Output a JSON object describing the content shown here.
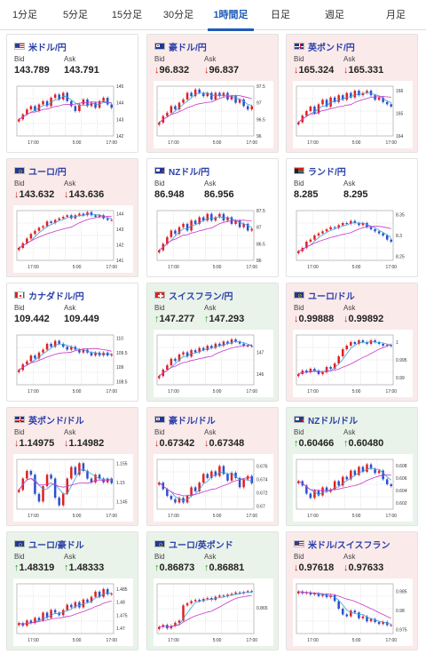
{
  "tabs": [
    {
      "label": "1分足",
      "active": false
    },
    {
      "label": "5分足",
      "active": false
    },
    {
      "label": "15分足",
      "active": false
    },
    {
      "label": "30分足",
      "active": false
    },
    {
      "label": "1時間足",
      "active": true
    },
    {
      "label": "日足",
      "active": false
    },
    {
      "label": "週足",
      "active": false
    },
    {
      "label": "月足",
      "active": false
    }
  ],
  "labels": {
    "bid": "Bid",
    "ask": "Ask"
  },
  "colors": {
    "up_bg": "#e9f3e9",
    "down_bg": "#fbeaea",
    "up_arrow": "#2a9a2a",
    "down_arrow": "#d02020",
    "candle_up": "#e02020",
    "candle_down": "#2a4fd0",
    "ma_short": "#37a0e0",
    "ma_long": "#c838c8"
  },
  "pairs": [
    {
      "name": "米ドル/円",
      "flag": "us",
      "dir": "flat",
      "bid": "143.789",
      "ask": "143.791",
      "chart_data": {
        "type": "candlestick",
        "x_ticks": [
          "17:00",
          "5:00",
          "17:00"
        ],
        "y_ticks": [
          "145",
          "144",
          "143",
          "142"
        ],
        "ylim": [
          142,
          145
        ],
        "close": [
          143.0,
          143.3,
          143.6,
          143.8,
          143.5,
          143.9,
          144.1,
          143.8,
          144.3,
          144.5,
          144.2,
          144.6,
          144.1,
          143.8,
          143.5,
          143.9,
          144.2,
          143.8,
          144.0,
          143.7,
          144.1,
          144.3,
          143.9,
          143.7
        ]
      }
    },
    {
      "name": "豪ドル/円",
      "flag": "au",
      "dir": "down",
      "bid": "96.832",
      "ask": "96.837",
      "chart_data": {
        "type": "candlestick",
        "x_ticks": [
          "17:00",
          "5:00",
          "17:00"
        ],
        "y_ticks": [
          "97.5",
          "97",
          "96.5",
          "96"
        ],
        "ylim": [
          96,
          97.5
        ],
        "close": [
          96.4,
          96.6,
          96.7,
          96.9,
          96.8,
          97.0,
          97.1,
          97.3,
          97.2,
          97.4,
          97.3,
          97.2,
          97.3,
          97.1,
          97.3,
          97.2,
          97.3,
          97.1,
          97.2,
          97.0,
          97.1,
          96.9,
          96.8,
          96.9
        ]
      }
    },
    {
      "name": "英ポンド/円",
      "flag": "gb",
      "dir": "down",
      "bid": "165.324",
      "ask": "165.331",
      "chart_data": {
        "type": "candlestick",
        "x_ticks": [
          "17:00",
          "5:00",
          "17:00"
        ],
        "y_ticks": [
          "166",
          "165",
          "164"
        ],
        "ylim": [
          164,
          166.2
        ],
        "close": [
          164.6,
          164.9,
          165.1,
          165.3,
          165.0,
          165.4,
          165.6,
          165.3,
          165.7,
          165.5,
          165.8,
          165.6,
          165.9,
          165.7,
          166.0,
          165.8,
          165.9,
          166.0,
          165.8,
          165.6,
          165.7,
          165.5,
          165.4,
          165.3
        ]
      }
    },
    {
      "name": "ユーロ/円",
      "flag": "eu",
      "dir": "down",
      "bid": "143.632",
      "ask": "143.636",
      "chart_data": {
        "type": "candlestick",
        "x_ticks": [
          "17:00",
          "5:00",
          "17:00"
        ],
        "y_ticks": [
          "144",
          "143",
          "142",
          "141"
        ],
        "ylim": [
          141,
          144.2
        ],
        "close": [
          141.8,
          142.1,
          142.4,
          142.7,
          142.9,
          143.1,
          143.2,
          143.5,
          143.4,
          143.6,
          143.7,
          143.8,
          143.9,
          143.7,
          143.9,
          144.0,
          143.9,
          144.1,
          143.9,
          143.8,
          143.9,
          143.7,
          143.6,
          143.6
        ]
      }
    },
    {
      "name": "NZドル/円",
      "flag": "nz",
      "dir": "flat",
      "bid": "86.948",
      "ask": "86.956",
      "chart_data": {
        "type": "candlestick",
        "x_ticks": [
          "17:00",
          "5:00",
          "17:00"
        ],
        "y_ticks": [
          "87.5",
          "87",
          "86.5",
          "86"
        ],
        "ylim": [
          86,
          87.5
        ],
        "close": [
          86.3,
          86.5,
          86.7,
          86.9,
          86.8,
          87.0,
          87.1,
          86.9,
          87.2,
          87.1,
          87.3,
          87.2,
          87.4,
          87.2,
          87.3,
          87.4,
          87.2,
          87.3,
          87.1,
          87.2,
          87.0,
          87.1,
          86.9,
          86.95
        ]
      }
    },
    {
      "name": "ランド/円",
      "flag": "za",
      "dir": "flat",
      "bid": "8.285",
      "ask": "8.295",
      "chart_data": {
        "type": "candlestick",
        "x_ticks": [
          "17:00",
          "5:00",
          "17:00"
        ],
        "y_ticks": [
          "8.35",
          "8.3",
          "8.25"
        ],
        "ylim": [
          8.24,
          8.36
        ],
        "close": [
          8.262,
          8.27,
          8.285,
          8.29,
          8.3,
          8.305,
          8.31,
          8.315,
          8.32,
          8.318,
          8.325,
          8.33,
          8.328,
          8.335,
          8.33,
          8.325,
          8.33,
          8.32,
          8.315,
          8.31,
          8.305,
          8.3,
          8.29,
          8.285
        ]
      }
    },
    {
      "name": "カナダドル/円",
      "flag": "ca",
      "dir": "flat",
      "bid": "109.442",
      "ask": "109.449",
      "chart_data": {
        "type": "candlestick",
        "x_ticks": [
          "17:00",
          "5:00",
          "17:00"
        ],
        "y_ticks": [
          "110",
          "109.5",
          "109",
          "108.5"
        ],
        "ylim": [
          108.4,
          110.1
        ],
        "close": [
          108.9,
          109.1,
          109.2,
          109.4,
          109.3,
          109.5,
          109.6,
          109.8,
          109.7,
          109.9,
          109.8,
          109.7,
          109.6,
          109.7,
          109.6,
          109.5,
          109.6,
          109.5,
          109.4,
          109.5,
          109.4,
          109.5,
          109.4,
          109.44
        ]
      }
    },
    {
      "name": "スイスフラン/円",
      "flag": "ch",
      "dir": "up",
      "bid": "147.277",
      "ask": "147.293",
      "chart_data": {
        "type": "candlestick",
        "x_ticks": [
          "17:00",
          "5:00",
          "17:00"
        ],
        "y_ticks": [
          "147",
          "146"
        ],
        "ylim": [
          145.5,
          147.8
        ],
        "close": [
          145.9,
          146.2,
          146.4,
          146.7,
          146.6,
          146.9,
          147.0,
          146.8,
          147.1,
          147.0,
          147.2,
          147.1,
          147.3,
          147.2,
          147.4,
          147.3,
          147.5,
          147.4,
          147.6,
          147.5,
          147.4,
          147.3,
          147.3,
          147.28
        ]
      }
    },
    {
      "name": "ユーロ/ドル",
      "flag": "eu",
      "dir": "down",
      "bid": "0.99888",
      "ask": "0.99892",
      "chart_data": {
        "type": "candlestick",
        "x_ticks": [
          "17:00",
          "5:00",
          "17:00"
        ],
        "y_ticks": [
          "1",
          "0.995",
          "0.99"
        ],
        "ylim": [
          0.988,
          1.002
        ],
        "close": [
          0.991,
          0.992,
          0.9915,
          0.9925,
          0.992,
          0.991,
          0.9915,
          0.993,
          0.9925,
          0.994,
          0.996,
          0.998,
          0.999,
          1.0,
          0.9995,
          1.0005,
          1.0,
          0.9995,
          1.0005,
          1.0,
          0.9995,
          0.999,
          0.9992,
          0.9989
        ]
      }
    },
    {
      "name": "英ポンド/ドル",
      "flag": "gb",
      "dir": "down",
      "bid": "1.14975",
      "ask": "1.14982",
      "chart_data": {
        "type": "candlestick",
        "x_ticks": [
          "17:00",
          "5:00",
          "17:00"
        ],
        "y_ticks": [
          "1.155",
          "1.15",
          "1.145"
        ],
        "ylim": [
          1.143,
          1.156
        ],
        "close": [
          1.148,
          1.151,
          1.153,
          1.152,
          1.147,
          1.145,
          1.149,
          1.152,
          1.151,
          1.146,
          1.144,
          1.147,
          1.151,
          1.154,
          1.152,
          1.155,
          1.153,
          1.151,
          1.15,
          1.152,
          1.151,
          1.15,
          1.151,
          1.1498
        ]
      }
    },
    {
      "name": "豪ドル/ドル",
      "flag": "au",
      "dir": "down",
      "bid": "0.67342",
      "ask": "0.67348",
      "chart_data": {
        "type": "candlestick",
        "x_ticks": [
          "17:00",
          "5:00",
          "17:00"
        ],
        "y_ticks": [
          "0.676",
          "0.674",
          "0.672",
          "0.67"
        ],
        "ylim": [
          0.6695,
          0.677
        ],
        "close": [
          0.6735,
          0.6725,
          0.6715,
          0.671,
          0.6705,
          0.6712,
          0.6705,
          0.6715,
          0.6728,
          0.6722,
          0.6735,
          0.6748,
          0.6742,
          0.6752,
          0.6745,
          0.676,
          0.6748,
          0.6738,
          0.675,
          0.6742,
          0.6728,
          0.674,
          0.6745,
          0.6734
        ]
      }
    },
    {
      "name": "NZドル/ドル",
      "flag": "nz",
      "dir": "up",
      "bid": "0.60466",
      "ask": "0.60480",
      "chart_data": {
        "type": "candlestick",
        "x_ticks": [
          "17:00",
          "5:00",
          "17:00"
        ],
        "y_ticks": [
          "0.608",
          "0.606",
          "0.604",
          "0.602"
        ],
        "ylim": [
          0.601,
          0.609
        ],
        "close": [
          0.6055,
          0.6048,
          0.6035,
          0.6028,
          0.604,
          0.6032,
          0.6045,
          0.6038,
          0.6042,
          0.6055,
          0.6048,
          0.6062,
          0.6058,
          0.6072,
          0.6065,
          0.6078,
          0.607,
          0.6082,
          0.6075,
          0.6068,
          0.6072,
          0.6058,
          0.605,
          0.6047
        ]
      }
    },
    {
      "name": "ユーロ/豪ドル",
      "flag": "eu",
      "dir": "up",
      "bid": "1.48319",
      "ask": "1.48333",
      "chart_data": {
        "type": "candlestick",
        "x_ticks": [
          "17:00",
          "5:00",
          "17:00"
        ],
        "y_ticks": [
          "1.485",
          "1.48",
          "1.475",
          "1.47"
        ],
        "ylim": [
          1.468,
          1.487
        ],
        "close": [
          1.472,
          1.471,
          1.473,
          1.472,
          1.474,
          1.473,
          1.476,
          1.474,
          1.477,
          1.476,
          1.475,
          1.477,
          1.479,
          1.478,
          1.48,
          1.478,
          1.481,
          1.48,
          1.482,
          1.484,
          1.482,
          1.485,
          1.483,
          1.4832
        ]
      }
    },
    {
      "name": "ユーロ/英ポンド",
      "flag": "eu",
      "dir": "up",
      "bid": "0.86873",
      "ask": "0.86881",
      "chart_data": {
        "type": "candlestick",
        "x_ticks": [
          "17:00",
          "5:00",
          "17:00"
        ],
        "y_ticks": [
          "0.865"
        ],
        "ylim": [
          0.859,
          0.8705
        ],
        "close": [
          0.8605,
          0.861,
          0.8602,
          0.8608,
          0.8615,
          0.862,
          0.8655,
          0.866,
          0.8665,
          0.8668,
          0.8665,
          0.867,
          0.8672,
          0.8668,
          0.8675,
          0.8678,
          0.8676,
          0.868,
          0.8682,
          0.8685,
          0.8683,
          0.8686,
          0.8688,
          0.8687
        ]
      }
    },
    {
      "name": "米ドル/スイスフラン",
      "flag": "us",
      "dir": "down",
      "bid": "0.97618",
      "ask": "0.97633",
      "chart_data": {
        "type": "candlestick",
        "x_ticks": [
          "17:00",
          "5:00",
          "17:00"
        ],
        "y_ticks": [
          "0.985",
          "0.98",
          "0.975"
        ],
        "ylim": [
          0.974,
          0.987
        ],
        "close": [
          0.985,
          0.9845,
          0.9848,
          0.9842,
          0.9845,
          0.9838,
          0.9842,
          0.9835,
          0.984,
          0.9825,
          0.9805,
          0.979,
          0.9785,
          0.98,
          0.9795,
          0.978,
          0.9785,
          0.9772,
          0.9778,
          0.977,
          0.9765,
          0.977,
          0.9762,
          0.9762
        ]
      }
    }
  ]
}
